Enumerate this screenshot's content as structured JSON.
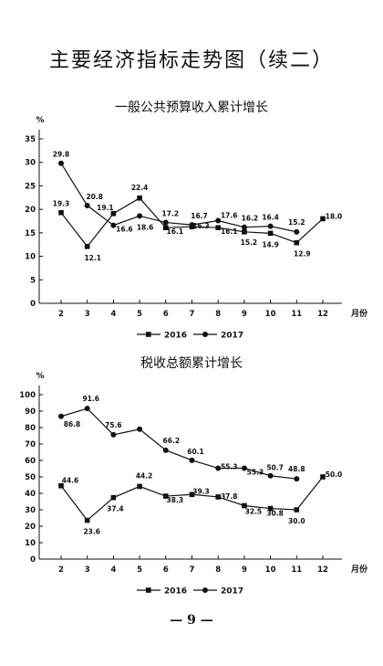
{
  "page": {
    "title": "主要经济指标走势图（续二）",
    "page_number": "— 9 —"
  },
  "chart_data": [
    {
      "type": "line",
      "title": "一般公共预算收入累计增长",
      "ylabel": "%",
      "xlabel": "月份",
      "ylim": [
        0,
        35
      ],
      "yticks": [
        0,
        5,
        10,
        15,
        20,
        25,
        30,
        35
      ],
      "categories": [
        "2",
        "3",
        "4",
        "5",
        "6",
        "7",
        "8",
        "9",
        "10",
        "11",
        "12"
      ],
      "legend": {
        "position": "bottom",
        "entries": [
          "2016",
          "2017"
        ]
      },
      "series": [
        {
          "name": "2016",
          "marker": "square",
          "values": [
            19.3,
            12.1,
            19.1,
            22.4,
            16.1,
            16.3,
            16.1,
            15.2,
            14.9,
            12.9,
            18.0
          ]
        },
        {
          "name": "2017",
          "marker": "circle",
          "values": [
            29.8,
            20.8,
            16.6,
            18.6,
            17.2,
            16.7,
            17.6,
            16.2,
            16.4,
            15.2,
            null
          ]
        }
      ]
    },
    {
      "type": "line",
      "title": "税收总额累计增长",
      "ylabel": "%",
      "xlabel": "月份",
      "ylim": [
        0,
        100
      ],
      "yticks": [
        0,
        10,
        20,
        30,
        40,
        50,
        60,
        70,
        80,
        90,
        100
      ],
      "categories": [
        "2",
        "3",
        "4",
        "5",
        "6",
        "7",
        "8",
        "9",
        "10",
        "11",
        "12"
      ],
      "legend": {
        "position": "bottom",
        "entries": [
          "2016",
          "2017"
        ]
      },
      "series": [
        {
          "name": "2016",
          "marker": "square",
          "values": [
            44.6,
            23.6,
            37.4,
            44.2,
            38.3,
            39.3,
            37.8,
            32.5,
            30.8,
            30.0,
            50.0
          ]
        },
        {
          "name": "2017",
          "marker": "circle",
          "values": [
            86.8,
            91.6,
            75.6,
            79.0,
            66.2,
            60.1,
            55.3,
            55.3,
            50.7,
            48.8,
            null
          ]
        }
      ]
    }
  ]
}
